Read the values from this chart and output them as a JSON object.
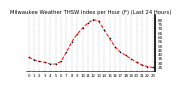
{
  "hours": [
    0,
    1,
    2,
    3,
    4,
    5,
    6,
    7,
    8,
    9,
    10,
    11,
    12,
    13,
    14,
    15,
    16,
    17,
    18,
    19,
    20,
    21,
    22,
    23
  ],
  "values": [
    36,
    33,
    31,
    30,
    28,
    28,
    31,
    42,
    54,
    63,
    70,
    76,
    80,
    78,
    68,
    58,
    48,
    42,
    38,
    34,
    30,
    27,
    25,
    24
  ],
  "line_color": "#ff0000",
  "marker_color": "#000000",
  "bg_color": "#ffffff",
  "grid_color": "#888888",
  "title": "Milwaukee Weather THSW Index per Hour (F) (Last 24 Hours)",
  "title_fontsize": 3.8,
  "title_color": "#000000",
  "ylabel_fontsize": 3.0,
  "xlabel_fontsize": 2.8,
  "ylim": [
    20,
    85
  ],
  "yticks": [
    25,
    30,
    35,
    40,
    45,
    50,
    55,
    60,
    65,
    70,
    75,
    80
  ],
  "xticks": [
    0,
    1,
    2,
    3,
    4,
    5,
    6,
    7,
    8,
    9,
    10,
    11,
    12,
    13,
    14,
    15,
    16,
    17,
    18,
    19,
    20,
    21,
    22,
    23
  ],
  "xtick_labels": [
    "0",
    "1",
    "2",
    "3",
    "4",
    "5",
    "6",
    "7",
    "8",
    "9",
    "10",
    "11",
    "12",
    "13",
    "14",
    "15",
    "16",
    "17",
    "18",
    "19",
    "20",
    "21",
    "22",
    "23"
  ]
}
